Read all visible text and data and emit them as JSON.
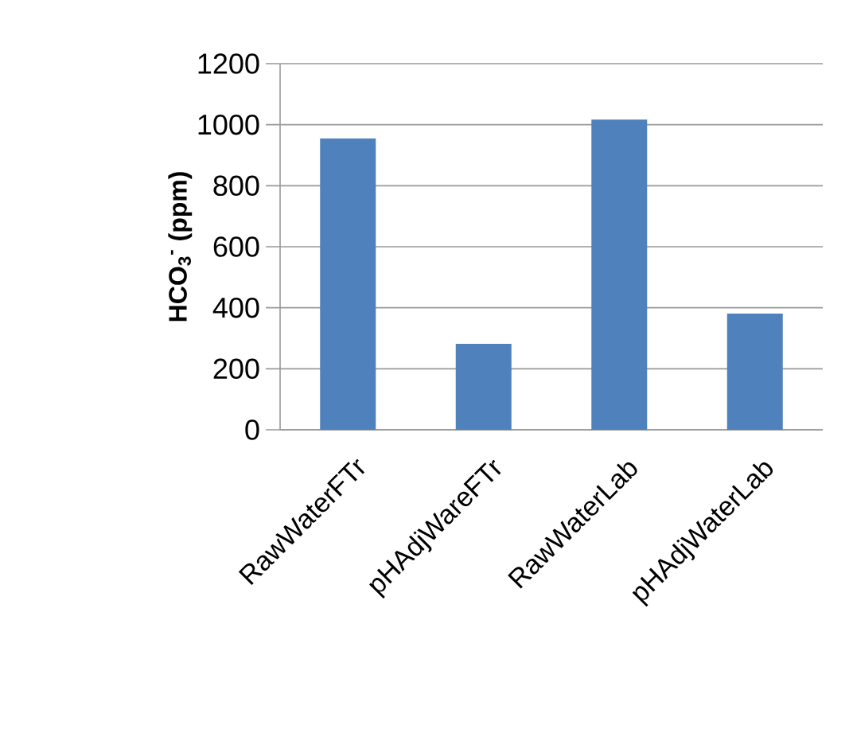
{
  "chart_data": {
    "type": "bar",
    "ylabel": "HCO$_{3}$$^{-}$ (ppm)",
    "categories": [
      "RawWaterFTr",
      "pHAdjWareFTr",
      "RawWaterLab",
      "pHAdjWaterLab"
    ],
    "values": [
      955,
      282,
      1017,
      381
    ],
    "color": "#4f81bd",
    "ylim": [
      0,
      1200
    ],
    "yticks": [
      0,
      200,
      400,
      600,
      800,
      1000,
      1200
    ],
    "grid": "y"
  }
}
